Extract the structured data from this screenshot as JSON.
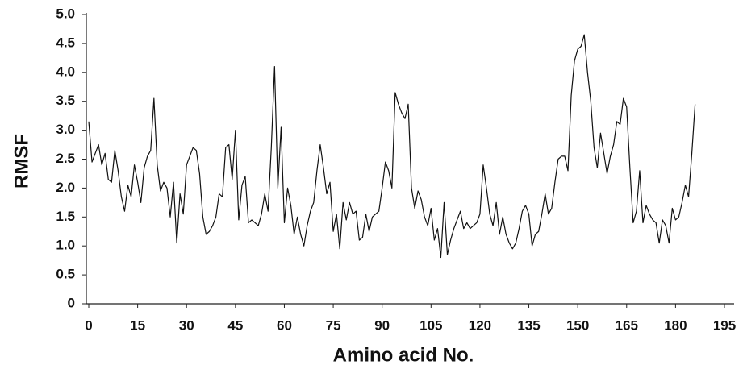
{
  "chart_data": {
    "type": "line",
    "x_label": "Amino acid No.",
    "y_label": "RMSF",
    "x": [
      0,
      1,
      2,
      3,
      4,
      5,
      6,
      7,
      8,
      9,
      10,
      11,
      12,
      13,
      14,
      15,
      16,
      17,
      18,
      19,
      20,
      21,
      22,
      23,
      24,
      25,
      26,
      27,
      28,
      29,
      30,
      31,
      32,
      33,
      34,
      35,
      36,
      37,
      38,
      39,
      40,
      41,
      42,
      43,
      44,
      45,
      46,
      47,
      48,
      49,
      50,
      51,
      52,
      53,
      54,
      55,
      56,
      57,
      58,
      59,
      60,
      61,
      62,
      63,
      64,
      65,
      66,
      67,
      68,
      69,
      70,
      71,
      72,
      73,
      74,
      75,
      76,
      77,
      78,
      79,
      80,
      81,
      82,
      83,
      84,
      85,
      86,
      87,
      88,
      89,
      90,
      91,
      92,
      93,
      94,
      95,
      96,
      97,
      98,
      99,
      100,
      101,
      102,
      103,
      104,
      105,
      106,
      107,
      108,
      109,
      110,
      111,
      112,
      113,
      114,
      115,
      116,
      117,
      118,
      119,
      120,
      121,
      122,
      123,
      124,
      125,
      126,
      127,
      128,
      129,
      130,
      131,
      132,
      133,
      134,
      135,
      136,
      137,
      138,
      139,
      140,
      141,
      142,
      143,
      144,
      145,
      146,
      147,
      148,
      149,
      150,
      151,
      152,
      153,
      154,
      155,
      156,
      157,
      158,
      159,
      160,
      161,
      162,
      163,
      164,
      165,
      166,
      167,
      168,
      169,
      170,
      171,
      172,
      173,
      174,
      175,
      176,
      177,
      178,
      179,
      180,
      181,
      182,
      183,
      184,
      185,
      186
    ],
    "series": [
      {
        "color": "#111111",
        "values": [
          3.15,
          2.45,
          2.6,
          2.75,
          2.4,
          2.6,
          2.15,
          2.1,
          2.65,
          2.3,
          1.85,
          1.6,
          2.05,
          1.85,
          2.4,
          2.1,
          1.75,
          2.35,
          2.55,
          2.65,
          3.55,
          2.4,
          1.95,
          2.1,
          2.0,
          1.5,
          2.1,
          1.05,
          1.9,
          1.55,
          2.4,
          2.55,
          2.7,
          2.65,
          2.25,
          1.5,
          1.2,
          1.25,
          1.35,
          1.5,
          1.9,
          1.85,
          2.7,
          2.75,
          2.15,
          3.0,
          1.45,
          2.05,
          2.2,
          1.4,
          1.45,
          1.4,
          1.35,
          1.55,
          1.9,
          1.6,
          2.7,
          4.1,
          2.0,
          3.05,
          1.4,
          2.0,
          1.7,
          1.2,
          1.5,
          1.2,
          1.0,
          1.35,
          1.6,
          1.75,
          2.3,
          2.75,
          2.35,
          1.9,
          2.1,
          1.25,
          1.55,
          0.95,
          1.75,
          1.45,
          1.75,
          1.55,
          1.6,
          1.1,
          1.15,
          1.55,
          1.25,
          1.5,
          1.55,
          1.6,
          2.0,
          2.45,
          2.3,
          2.0,
          3.65,
          3.45,
          3.3,
          3.2,
          3.45,
          2.0,
          1.65,
          1.95,
          1.8,
          1.5,
          1.35,
          1.65,
          1.1,
          1.3,
          0.8,
          1.75,
          0.85,
          1.1,
          1.3,
          1.45,
          1.6,
          1.3,
          1.4,
          1.3,
          1.35,
          1.4,
          1.55,
          2.4,
          2.0,
          1.55,
          1.35,
          1.75,
          1.2,
          1.5,
          1.2,
          1.05,
          0.95,
          1.05,
          1.3,
          1.6,
          1.7,
          1.55,
          1.0,
          1.2,
          1.25,
          1.55,
          1.9,
          1.55,
          1.65,
          2.1,
          2.5,
          2.55,
          2.55,
          2.3,
          3.6,
          4.2,
          4.4,
          4.45,
          4.65,
          4.0,
          3.5,
          2.7,
          2.35,
          2.95,
          2.6,
          2.25,
          2.55,
          2.75,
          3.15,
          3.1,
          3.55,
          3.4,
          2.35,
          1.4,
          1.6,
          2.3,
          1.4,
          1.7,
          1.55,
          1.45,
          1.4,
          1.05,
          1.45,
          1.35,
          1.05,
          1.65,
          1.45,
          1.5,
          1.75,
          2.05,
          1.85,
          2.6,
          3.45
        ]
      }
    ],
    "xlim": [
      0,
      195
    ],
    "ylim": [
      0,
      5
    ],
    "xticks": [
      0,
      15,
      30,
      45,
      60,
      75,
      90,
      105,
      120,
      135,
      150,
      165,
      180,
      195
    ],
    "yticks": [
      0,
      0.5,
      {
        "value": 1,
        "label": "1.0"
      },
      1.5,
      {
        "value": 2,
        "label": "2.0"
      },
      2.5,
      {
        "value": 3,
        "label": "3.0"
      },
      3.5,
      {
        "value": 4,
        "label": "4.0"
      },
      4.5,
      {
        "value": 5,
        "label": "5.0"
      }
    ],
    "grid": false
  }
}
